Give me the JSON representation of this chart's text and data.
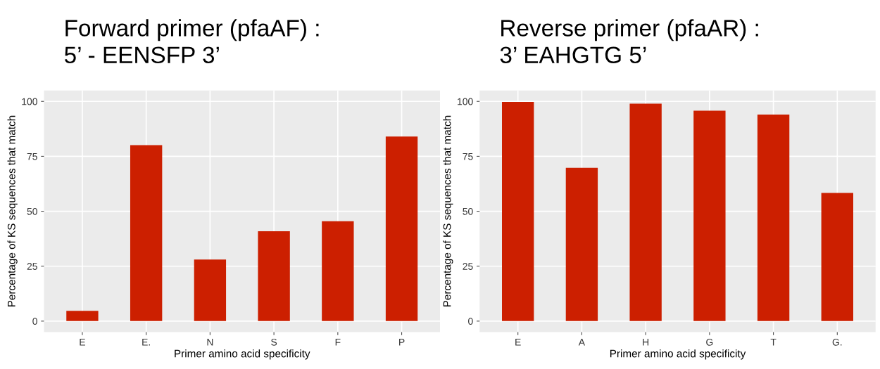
{
  "chart_data": [
    {
      "type": "bar",
      "title": "Forward primer (pfaAF) :\n5’ - EENSFP 3’",
      "xlabel": "Primer amino acid specificity",
      "ylabel": "Percentage of KS sequences that match",
      "categories": [
        "E",
        "E.",
        "N",
        "S",
        "F",
        "P"
      ],
      "values": [
        4.7,
        80.1,
        28.0,
        40.9,
        45.5,
        84.0
      ],
      "color": "#cc1f00",
      "ylim": [
        -5,
        105
      ],
      "yticks": [
        0,
        25,
        50,
        75,
        100
      ],
      "grid": true
    },
    {
      "type": "bar",
      "title": "Reverse primer (pfaAR) :\n3’ EAHGTG 5’",
      "xlabel": "Primer amino acid specificity",
      "ylabel": "Percentage of KS sequences that match",
      "categories": [
        "E",
        "A",
        "H",
        "G",
        "T",
        "G."
      ],
      "values": [
        99.8,
        69.8,
        99.0,
        95.8,
        94.0,
        58.3
      ],
      "color": "#cc1f00",
      "ylim": [
        -5,
        105
      ],
      "yticks": [
        0,
        25,
        50,
        75,
        100
      ],
      "grid": true
    }
  ]
}
